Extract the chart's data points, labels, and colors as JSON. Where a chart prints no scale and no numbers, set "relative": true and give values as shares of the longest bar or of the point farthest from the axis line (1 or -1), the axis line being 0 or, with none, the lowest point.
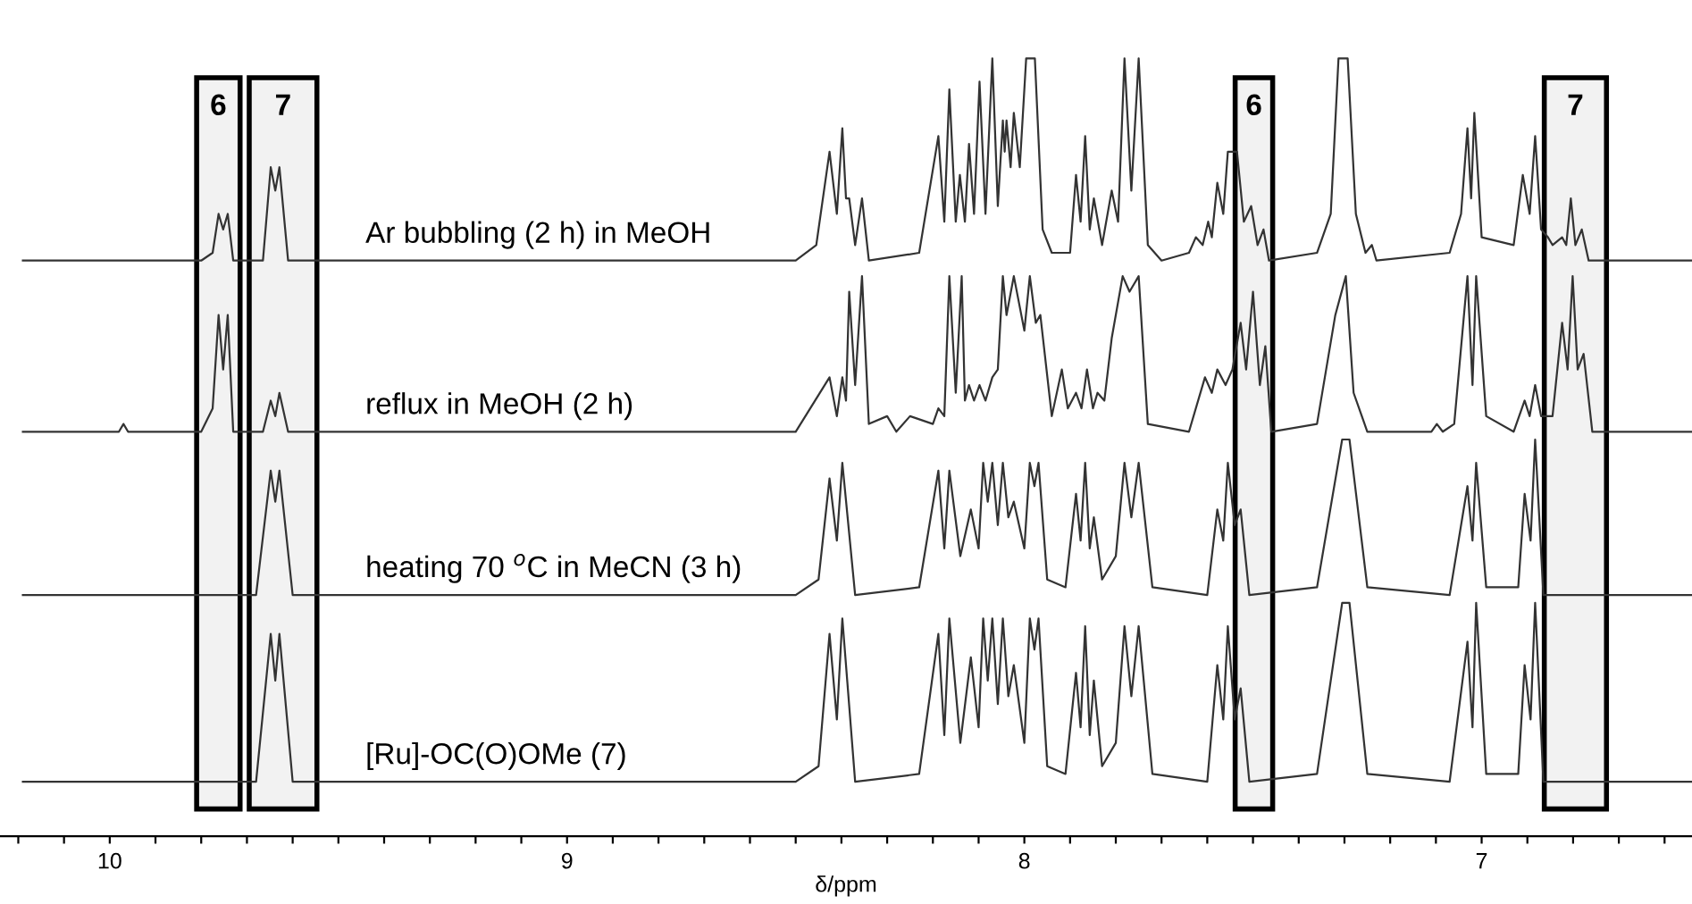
{
  "chart_data": {
    "type": "line",
    "relative": true,
    "xlabel": "δ/ppm",
    "xlim": [
      10.24,
      6.54
    ],
    "xticks": [
      10,
      9,
      8,
      7,
      {
        "value": 10.2,
        "label": null
      },
      {
        "value": 10.1,
        "label": null
      },
      {
        "value": 9.9,
        "label": null
      },
      {
        "value": 9.8,
        "label": null
      },
      {
        "value": 9.7,
        "label": null
      },
      {
        "value": 9.6,
        "label": null
      },
      {
        "value": 9.5,
        "label": null
      },
      {
        "value": 9.4,
        "label": null
      },
      {
        "value": 9.3,
        "label": null
      },
      {
        "value": 9.2,
        "label": null
      },
      {
        "value": 9.1,
        "label": null
      },
      {
        "value": 8.9,
        "label": null
      },
      {
        "value": 8.8,
        "label": null
      },
      {
        "value": 8.7,
        "label": null
      },
      {
        "value": 8.6,
        "label": null
      },
      {
        "value": 8.5,
        "label": null
      },
      {
        "value": 8.4,
        "label": null
      },
      {
        "value": 8.3,
        "label": null
      },
      {
        "value": 8.2,
        "label": null
      },
      {
        "value": 8.1,
        "label": null
      },
      {
        "value": 7.9,
        "label": null
      },
      {
        "value": 7.8,
        "label": null
      },
      {
        "value": 7.7,
        "label": null
      },
      {
        "value": 7.6,
        "label": null
      },
      {
        "value": 7.5,
        "label": null
      },
      {
        "value": 7.4,
        "label": null
      },
      {
        "value": 7.3,
        "label": null
      },
      {
        "value": 7.2,
        "label": null
      },
      {
        "value": 7.1,
        "label": null
      },
      {
        "value": 6.9,
        "label": null
      },
      {
        "value": 6.8,
        "label": null
      },
      {
        "value": 6.7,
        "label": null
      },
      {
        "value": 6.6,
        "label": null
      }
    ],
    "tick_labels": "x",
    "grid": false,
    "legend": false,
    "marker": "none",
    "line_style": "solid",
    "bands": [
      {
        "axis": "x",
        "from": 9.81,
        "to": 9.715,
        "label": "6",
        "color": "#000000"
      },
      {
        "axis": "x",
        "from": 9.695,
        "to": 9.547,
        "label": "7",
        "color": "#000000"
      },
      {
        "axis": "x",
        "from": 7.539,
        "to": 7.457,
        "label": "6",
        "color": "#000000"
      },
      {
        "axis": "x",
        "from": 6.863,
        "to": 6.727,
        "label": "7",
        "color": "#000000"
      }
    ],
    "series": [
      {
        "name": "Ar bubbling (2 h) in MeOH",
        "color": "#333333",
        "x": [
          10.19,
          9.8,
          9.775,
          9.762,
          9.752,
          9.742,
          9.73,
          9.665,
          9.648,
          9.638,
          9.629,
          9.61,
          8.5,
          8.455,
          8.426,
          8.41,
          8.398,
          8.39,
          8.383,
          8.37,
          8.355,
          8.34,
          8.23,
          8.188,
          8.175,
          8.164,
          8.15,
          8.141,
          8.13,
          8.121,
          8.11,
          8.098,
          8.085,
          8.07,
          8.058,
          8.047,
          8.043,
          8.039,
          8.03,
          8.023,
          8.01,
          7.996,
          7.977,
          7.96,
          7.94,
          7.9,
          7.887,
          7.877,
          7.867,
          7.857,
          7.848,
          7.83,
          7.809,
          7.795,
          7.781,
          7.766,
          7.75,
          7.73,
          7.7,
          7.64,
          7.625,
          7.61,
          7.598,
          7.59,
          7.578,
          7.565,
          7.555,
          7.535,
          7.52,
          7.504,
          7.49,
          7.477,
          7.465,
          7.36,
          7.33,
          7.313,
          7.293,
          7.275,
          7.254,
          7.24,
          7.23,
          7.07,
          7.045,
          7.031,
          7.023,
          7.016,
          7.0,
          6.93,
          6.91,
          6.895,
          6.883,
          6.87,
          6.855,
          6.845,
          6.824,
          6.815,
          6.805,
          6.795,
          6.781,
          6.766,
          6.54
        ],
        "values": [
          0.74,
          0.74,
          0.75,
          0.8,
          0.78,
          0.8,
          0.74,
          0.74,
          0.86,
          0.83,
          0.86,
          0.74,
          0.74,
          0.76,
          0.88,
          0.8,
          0.91,
          0.82,
          0.82,
          0.76,
          0.82,
          0.74,
          0.75,
          0.9,
          0.79,
          0.96,
          0.79,
          0.85,
          0.79,
          0.89,
          0.8,
          0.97,
          0.8,
          1.0,
          0.81,
          0.92,
          0.88,
          0.92,
          0.86,
          0.93,
          0.86,
          1.0,
          1.0,
          0.78,
          0.75,
          0.75,
          0.85,
          0.79,
          0.9,
          0.78,
          0.82,
          0.76,
          0.83,
          0.79,
          1.0,
          0.83,
          1.0,
          0.76,
          0.74,
          0.75,
          0.77,
          0.76,
          0.79,
          0.77,
          0.84,
          0.8,
          0.88,
          0.88,
          0.79,
          0.81,
          0.76,
          0.78,
          0.74,
          0.75,
          0.8,
          1.0,
          1.0,
          0.8,
          0.75,
          0.76,
          0.74,
          0.75,
          0.8,
          0.91,
          0.82,
          0.93,
          0.77,
          0.76,
          0.85,
          0.8,
          0.9,
          0.78,
          0.77,
          0.76,
          0.77,
          0.76,
          0.82,
          0.76,
          0.78,
          0.74,
          0.74
        ]
      },
      {
        "name": "reflux in MeOH (2 h)",
        "color": "#333333",
        "x": [
          10.19,
          9.98,
          9.97,
          9.96,
          9.8,
          9.775,
          9.762,
          9.752,
          9.742,
          9.73,
          9.665,
          9.648,
          9.638,
          9.629,
          9.61,
          8.5,
          8.426,
          8.41,
          8.398,
          8.39,
          8.383,
          8.37,
          8.355,
          8.34,
          8.3,
          8.28,
          8.25,
          8.2,
          8.188,
          8.175,
          8.164,
          8.15,
          8.137,
          8.13,
          8.121,
          8.11,
          8.098,
          8.085,
          8.07,
          8.058,
          8.047,
          8.039,
          8.023,
          8.0,
          7.988,
          7.975,
          7.965,
          7.94,
          7.918,
          7.905,
          7.887,
          7.875,
          7.863,
          7.85,
          7.84,
          7.825,
          7.809,
          7.785,
          7.77,
          7.75,
          7.73,
          7.64,
          7.605,
          7.59,
          7.578,
          7.56,
          7.545,
          7.527,
          7.515,
          7.5,
          7.485,
          7.473,
          7.46,
          7.36,
          7.32,
          7.297,
          7.28,
          7.25,
          7.11,
          7.098,
          7.085,
          7.06,
          7.031,
          7.02,
          7.012,
          6.99,
          6.93,
          6.906,
          6.895,
          6.883,
          6.87,
          6.845,
          6.824,
          6.812,
          6.801,
          6.79,
          6.777,
          6.758,
          6.54
        ],
        "values": [
          0.52,
          0.52,
          0.53,
          0.52,
          0.52,
          0.55,
          0.67,
          0.6,
          0.67,
          0.52,
          0.52,
          0.56,
          0.54,
          0.57,
          0.52,
          0.52,
          0.59,
          0.54,
          0.59,
          0.56,
          0.7,
          0.58,
          0.72,
          0.53,
          0.54,
          0.52,
          0.54,
          0.53,
          0.55,
          0.54,
          0.72,
          0.57,
          0.72,
          0.56,
          0.58,
          0.56,
          0.58,
          0.56,
          0.59,
          0.6,
          0.72,
          0.67,
          0.72,
          0.65,
          0.72,
          0.66,
          0.67,
          0.54,
          0.6,
          0.55,
          0.57,
          0.55,
          0.6,
          0.55,
          0.57,
          0.56,
          0.64,
          0.72,
          0.7,
          0.72,
          0.53,
          0.52,
          0.59,
          0.57,
          0.6,
          0.58,
          0.6,
          0.66,
          0.6,
          0.7,
          0.58,
          0.63,
          0.52,
          0.53,
          0.67,
          0.72,
          0.57,
          0.52,
          0.52,
          0.53,
          0.52,
          0.53,
          0.72,
          0.58,
          0.72,
          0.54,
          0.52,
          0.56,
          0.54,
          0.58,
          0.54,
          0.54,
          0.66,
          0.6,
          0.72,
          0.6,
          0.62,
          0.52,
          0.52
        ]
      },
      {
        "name": "heating 70 $^{o}$C in MeCN (3 h)",
        "color": "#333333",
        "x": [
          10.19,
          9.68,
          9.648,
          9.638,
          9.629,
          9.6,
          8.5,
          8.45,
          8.426,
          8.41,
          8.398,
          8.37,
          8.23,
          8.188,
          8.175,
          8.164,
          8.14,
          8.117,
          8.1,
          8.09,
          8.08,
          8.07,
          8.058,
          8.047,
          8.035,
          8.023,
          8.0,
          7.988,
          7.978,
          7.969,
          7.95,
          7.91,
          7.887,
          7.877,
          7.867,
          7.857,
          7.848,
          7.83,
          7.8,
          7.781,
          7.766,
          7.75,
          7.72,
          7.6,
          7.578,
          7.565,
          7.555,
          7.54,
          7.527,
          7.508,
          7.36,
          7.305,
          7.289,
          7.25,
          7.07,
          7.031,
          7.02,
          7.012,
          6.99,
          6.92,
          6.906,
          6.893,
          6.883,
          6.865,
          6.54
        ],
        "values": [
          0.31,
          0.31,
          0.47,
          0.43,
          0.47,
          0.31,
          0.31,
          0.33,
          0.46,
          0.38,
          0.48,
          0.31,
          0.32,
          0.47,
          0.37,
          0.47,
          0.36,
          0.42,
          0.37,
          0.48,
          0.43,
          0.48,
          0.4,
          0.48,
          0.41,
          0.43,
          0.37,
          0.48,
          0.45,
          0.48,
          0.33,
          0.32,
          0.44,
          0.38,
          0.48,
          0.37,
          0.41,
          0.33,
          0.36,
          0.48,
          0.41,
          0.48,
          0.32,
          0.31,
          0.42,
          0.38,
          0.48,
          0.4,
          0.42,
          0.31,
          0.32,
          0.51,
          0.51,
          0.32,
          0.31,
          0.45,
          0.38,
          0.48,
          0.32,
          0.32,
          0.44,
          0.38,
          0.51,
          0.31,
          0.31
        ]
      },
      {
        "name": "[Ru]-OC(O)OMe (7)",
        "color": "#333333",
        "x": [
          10.19,
          9.68,
          9.648,
          9.638,
          9.629,
          9.6,
          8.5,
          8.45,
          8.426,
          8.41,
          8.398,
          8.37,
          8.23,
          8.188,
          8.175,
          8.164,
          8.14,
          8.117,
          8.1,
          8.09,
          8.08,
          8.07,
          8.058,
          8.047,
          8.035,
          8.023,
          8.0,
          7.988,
          7.978,
          7.969,
          7.95,
          7.91,
          7.887,
          7.877,
          7.867,
          7.857,
          7.848,
          7.83,
          7.8,
          7.781,
          7.766,
          7.75,
          7.72,
          7.6,
          7.578,
          7.565,
          7.555,
          7.54,
          7.527,
          7.508,
          7.36,
          7.305,
          7.289,
          7.25,
          7.07,
          7.031,
          7.02,
          7.012,
          6.99,
          6.92,
          6.906,
          6.893,
          6.883,
          6.865,
          6.54
        ],
        "values": [
          0.07,
          0.07,
          0.26,
          0.2,
          0.26,
          0.07,
          0.07,
          0.09,
          0.26,
          0.15,
          0.28,
          0.07,
          0.08,
          0.26,
          0.13,
          0.28,
          0.12,
          0.23,
          0.14,
          0.28,
          0.2,
          0.28,
          0.17,
          0.28,
          0.18,
          0.22,
          0.12,
          0.28,
          0.24,
          0.28,
          0.09,
          0.08,
          0.21,
          0.14,
          0.27,
          0.13,
          0.2,
          0.09,
          0.12,
          0.27,
          0.18,
          0.27,
          0.08,
          0.07,
          0.22,
          0.15,
          0.27,
          0.15,
          0.19,
          0.07,
          0.08,
          0.3,
          0.3,
          0.08,
          0.07,
          0.25,
          0.14,
          0.3,
          0.08,
          0.08,
          0.22,
          0.15,
          0.3,
          0.07,
          0.07
        ]
      }
    ]
  }
}
